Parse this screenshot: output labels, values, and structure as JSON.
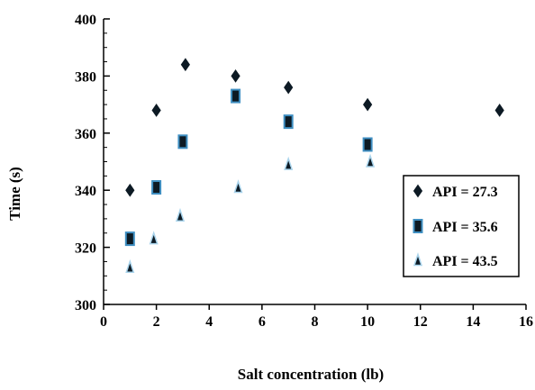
{
  "chart_data": {
    "type": "scatter",
    "title": "",
    "xlabel": "Salt concentration (lb)",
    "ylabel": "Time (s)",
    "xlim": [
      0,
      16
    ],
    "ylim": [
      300,
      400
    ],
    "xticks": [
      0,
      2,
      4,
      6,
      8,
      10,
      12,
      14,
      16
    ],
    "yticks": [
      300,
      320,
      340,
      360,
      380,
      400
    ],
    "grid": false,
    "legend_position": "right",
    "series": [
      {
        "name": "API = 27.3",
        "marker": "diamond",
        "color": "#0d1a24",
        "points": [
          [
            1,
            340
          ],
          [
            2,
            368
          ],
          [
            3.1,
            384
          ],
          [
            5,
            380
          ],
          [
            7,
            376
          ],
          [
            10,
            370
          ],
          [
            15,
            368
          ]
        ]
      },
      {
        "name": "API = 35.6",
        "marker": "square",
        "color": "#0d1a24",
        "edge_color": "#3f8fc2",
        "points": [
          [
            1,
            323
          ],
          [
            2,
            341
          ],
          [
            3,
            357
          ],
          [
            5,
            373
          ],
          [
            7,
            364
          ],
          [
            10,
            356
          ]
        ]
      },
      {
        "name": "API = 43.5",
        "marker": "triangle",
        "color": "#0d1a24",
        "edge_color": "#a9d4ec",
        "points": [
          [
            1,
            313
          ],
          [
            1.9,
            323
          ],
          [
            2.9,
            331
          ],
          [
            5.1,
            341
          ],
          [
            7,
            349
          ],
          [
            10.1,
            350
          ]
        ]
      }
    ]
  }
}
